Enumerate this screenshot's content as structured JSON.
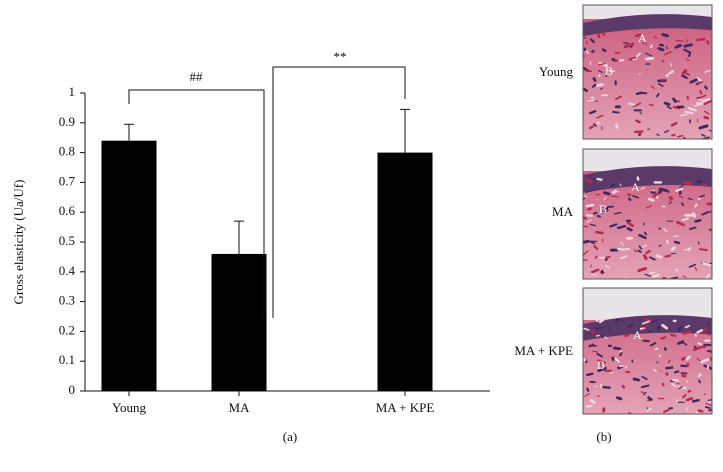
{
  "chart_data": {
    "type": "bar",
    "y_label": "Gross elasticity (Ua/Uf)",
    "categories": [
      "Young",
      "MA",
      "MA + KPE"
    ],
    "values": [
      0.84,
      0.46,
      0.8
    ],
    "errors": [
      0.055,
      0.11,
      0.145
    ],
    "color": "#000000",
    "ylim": [
      0,
      1
    ],
    "yticks": [
      0,
      0.1,
      0.2,
      0.3,
      0.4,
      0.5,
      0.6,
      0.7,
      0.8,
      0.9,
      1
    ],
    "annotations": [
      "##",
      "**"
    ],
    "caption": "(a)"
  },
  "panel_b": {
    "caption": "(b)",
    "images": [
      {
        "label": "Young",
        "marker_a": "A",
        "marker_b": "B"
      },
      {
        "label": "MA",
        "marker_a": "A",
        "marker_b": "B"
      },
      {
        "label": "MA + KPE",
        "marker_a": "A",
        "marker_b": "B"
      }
    ]
  }
}
